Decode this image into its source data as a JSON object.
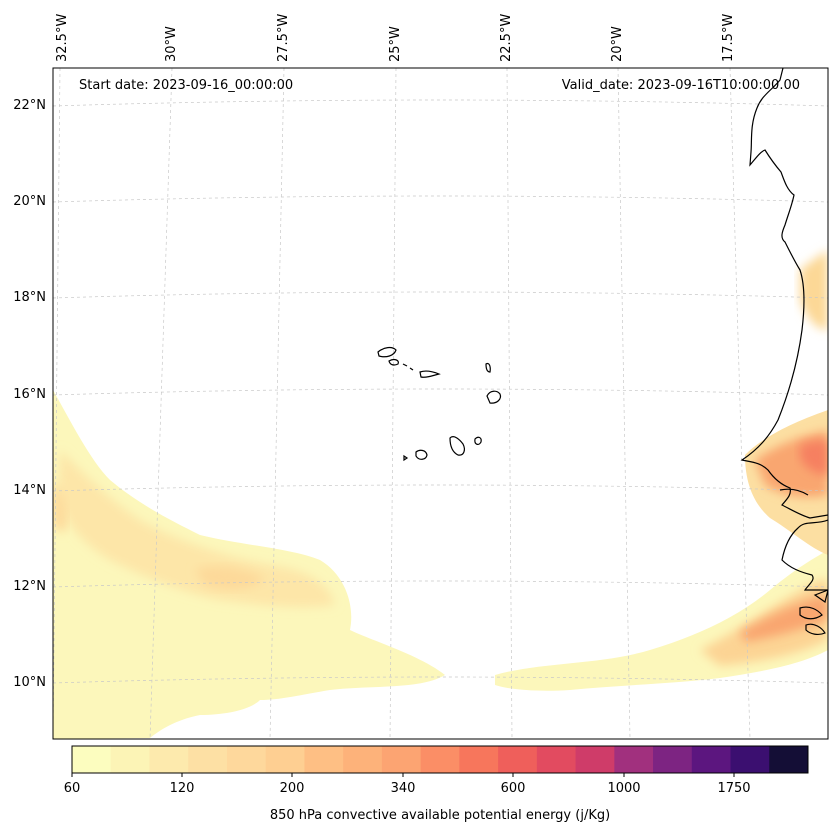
{
  "map": {
    "start_date": "Start date: 2023-09-16_00:00:00",
    "valid_date": "Valid_date: 2023-09-16T10:00:00.00",
    "lon_labels": [
      "32.5°W",
      "30°W",
      "27.5°W",
      "25°W",
      "22.5°W",
      "20°W",
      "17.5°W"
    ],
    "lat_labels": [
      "22°N",
      "20°N",
      "18°N",
      "16°N",
      "14°N",
      "12°N",
      "10°N"
    ],
    "gridlines": true,
    "field": "850 hPa convective available potential energy",
    "colormap": "magma_r"
  },
  "colorbar": {
    "label": "850 hPa convective available potential energy (j/Kg)",
    "tick_labels": [
      "60",
      "120",
      "200",
      "340",
      "600",
      "1000",
      "1750"
    ],
    "colors": [
      "#fcfdbf",
      "#fcf4b6",
      "#fdeaad",
      "#fde0a4",
      "#fed89c",
      "#fecf92",
      "#febf84",
      "#fdb27a",
      "#fca472",
      "#fb8e66",
      "#f7765c",
      "#ef5f5b",
      "#e24b60",
      "#cf3c69",
      "#a1307e",
      "#7d2482",
      "#5c167f",
      "#3b0f70",
      "#140e36"
    ]
  }
}
